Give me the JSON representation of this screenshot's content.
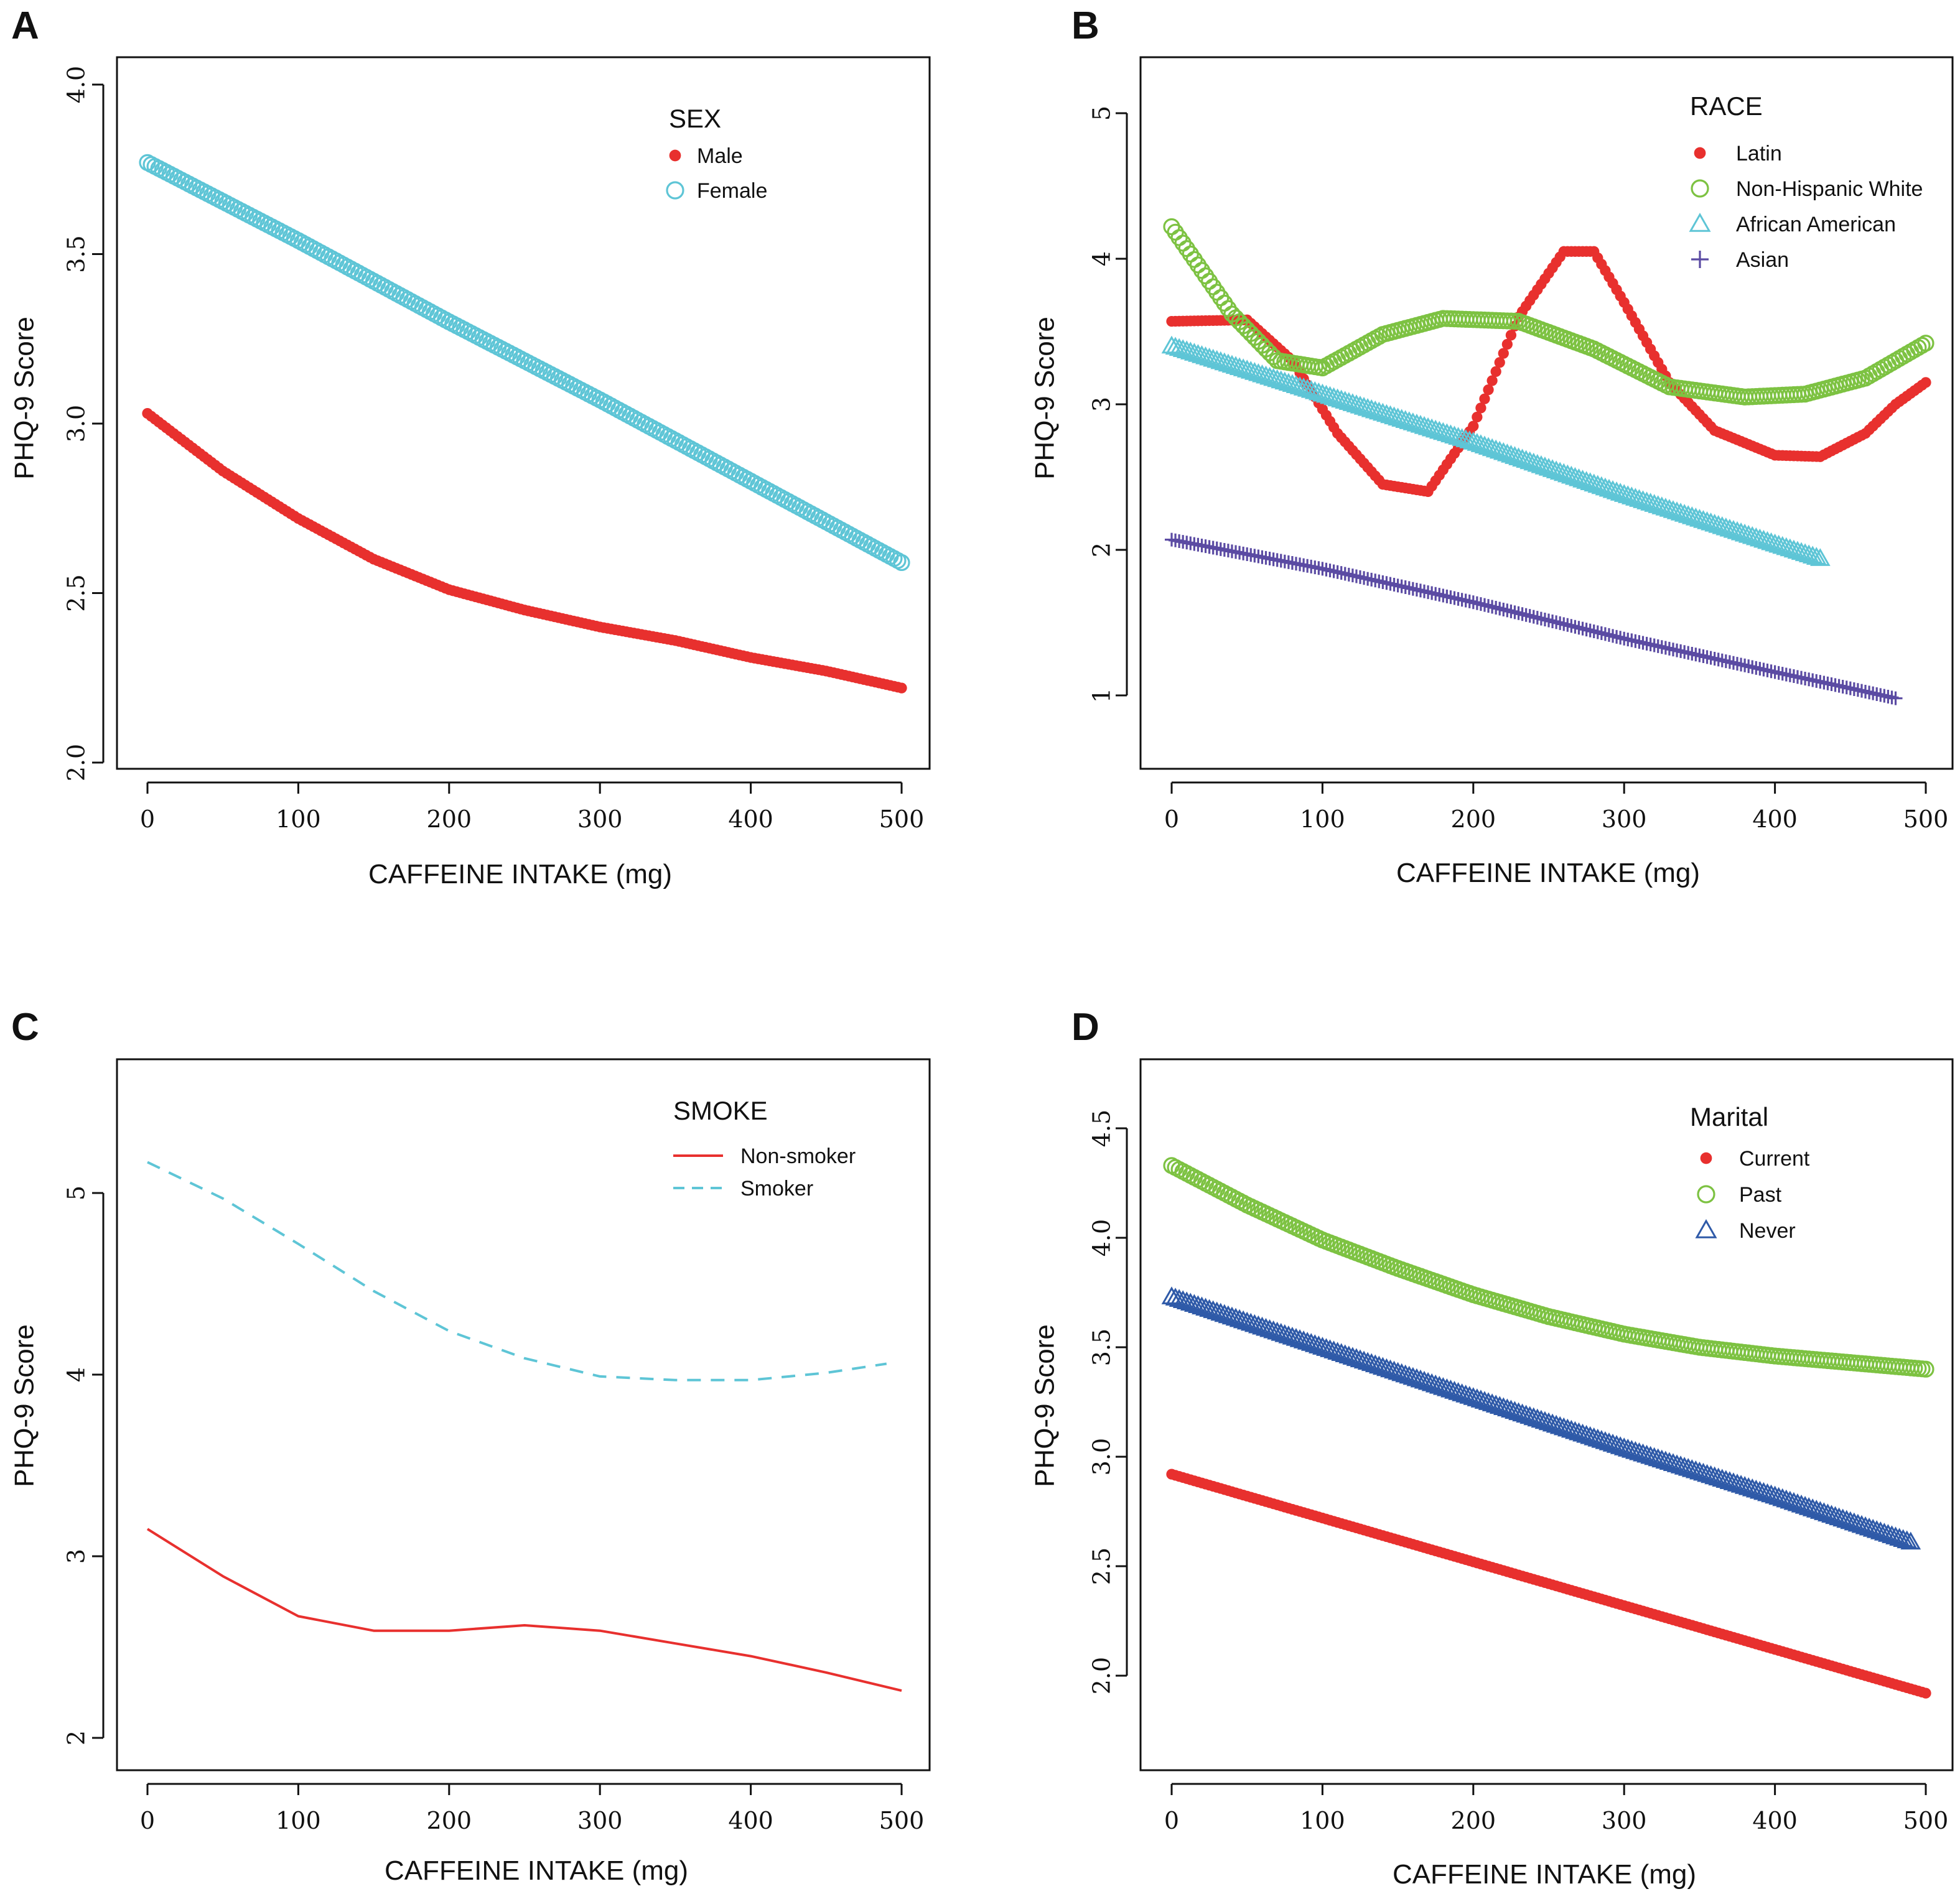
{
  "chart_data": [
    {
      "panel": "A",
      "type": "scatter",
      "xlabel": "CAFFEINE  INTAKE (mg)",
      "ylabel": "PHQ-9  Score",
      "xlim": [
        0,
        500
      ],
      "ylim": [
        2.0,
        4.0
      ],
      "x_ticks": [
        "0",
        "100",
        "200",
        "300",
        "400",
        "500"
      ],
      "y_ticks": [
        "2.0",
        "2.5",
        "3.0",
        "3.5",
        "4.0"
      ],
      "legend_title": "SEX",
      "legend_position": "top-right",
      "series": [
        {
          "name": "Male",
          "color": "#e8302e",
          "marker": "filled-circle",
          "points": [
            [
              0,
              3.03
            ],
            [
              50,
              2.86
            ],
            [
              100,
              2.72
            ],
            [
              150,
              2.6
            ],
            [
              200,
              2.51
            ],
            [
              250,
              2.45
            ],
            [
              300,
              2.4
            ],
            [
              350,
              2.36
            ],
            [
              400,
              2.31
            ],
            [
              450,
              2.27
            ],
            [
              500,
              2.22
            ]
          ]
        },
        {
          "name": "Female",
          "color": "#5ec5d6",
          "marker": "open-circle",
          "points": [
            [
              0,
              3.77
            ],
            [
              100,
              3.54
            ],
            [
              200,
              3.3
            ],
            [
              300,
              3.07
            ],
            [
              400,
              2.83
            ],
            [
              500,
              2.59
            ]
          ]
        }
      ]
    },
    {
      "panel": "B",
      "type": "scatter",
      "xlabel": "CAFFEINE  INTAKE (mg)",
      "ylabel": "PHQ-9  Score",
      "xlim": [
        0,
        500
      ],
      "ylim": [
        1,
        5
      ],
      "x_ticks": [
        "0",
        "100",
        "200",
        "300",
        "400",
        "500"
      ],
      "y_ticks": [
        "1",
        "2",
        "3",
        "4",
        "5"
      ],
      "legend_title": "RACE",
      "legend_position": "top-right",
      "series": [
        {
          "name": "Latin",
          "color": "#e8302e",
          "marker": "filled-circle",
          "points": [
            [
              0,
              3.57
            ],
            [
              50,
              3.58
            ],
            [
              80,
              3.3
            ],
            [
              110,
              2.8
            ],
            [
              140,
              2.45
            ],
            [
              170,
              2.4
            ],
            [
              200,
              2.85
            ],
            [
              230,
              3.6
            ],
            [
              260,
              4.05
            ],
            [
              280,
              4.05
            ],
            [
              300,
              3.7
            ],
            [
              330,
              3.15
            ],
            [
              360,
              2.82
            ],
            [
              400,
              2.65
            ],
            [
              430,
              2.64
            ],
            [
              460,
              2.8
            ],
            [
              480,
              3.0
            ],
            [
              500,
              3.15
            ]
          ]
        },
        {
          "name": "Non-Hispanic White",
          "color": "#7dc242",
          "marker": "open-circle",
          "points": [
            [
              0,
              4.22
            ],
            [
              40,
              3.62
            ],
            [
              70,
              3.3
            ],
            [
              100,
              3.25
            ],
            [
              140,
              3.48
            ],
            [
              180,
              3.59
            ],
            [
              230,
              3.57
            ],
            [
              280,
              3.38
            ],
            [
              330,
              3.12
            ],
            [
              380,
              3.05
            ],
            [
              420,
              3.07
            ],
            [
              460,
              3.18
            ],
            [
              500,
              3.42
            ]
          ]
        },
        {
          "name": "African American",
          "color": "#5ec5d6",
          "marker": "open-triangle",
          "points": [
            [
              0,
              3.4
            ],
            [
              100,
              3.07
            ],
            [
              200,
              2.74
            ],
            [
              300,
              2.38
            ],
            [
              400,
              2.04
            ],
            [
              430,
              1.94
            ]
          ]
        },
        {
          "name": "Asian",
          "color": "#5b4ba3",
          "marker": "plus",
          "points": [
            [
              0,
              2.07
            ],
            [
              100,
              1.87
            ],
            [
              200,
              1.64
            ],
            [
              300,
              1.39
            ],
            [
              400,
              1.16
            ],
            [
              445,
              1.06
            ],
            [
              480,
              0.98
            ]
          ]
        }
      ]
    },
    {
      "panel": "C",
      "type": "line",
      "xlabel": "CAFFEINE  INTAKE (mg)",
      "ylabel": "PHQ-9  Score",
      "xlim": [
        0,
        500
      ],
      "ylim": [
        2,
        5
      ],
      "x_ticks": [
        "0",
        "100",
        "200",
        "300",
        "400",
        "500"
      ],
      "y_ticks": [
        "2",
        "3",
        "4",
        "5"
      ],
      "legend_title": "SMOKE",
      "legend_position": "top-right",
      "series": [
        {
          "name": "Non-smoker",
          "color": "#e8302e",
          "style": "solid",
          "points": [
            [
              0,
              3.15
            ],
            [
              50,
              2.89
            ],
            [
              100,
              2.67
            ],
            [
              150,
              2.59
            ],
            [
              200,
              2.59
            ],
            [
              250,
              2.62
            ],
            [
              300,
              2.59
            ],
            [
              350,
              2.52
            ],
            [
              400,
              2.45
            ],
            [
              450,
              2.36
            ],
            [
              500,
              2.26
            ]
          ]
        },
        {
          "name": "Smoker",
          "color": "#5ec5d6",
          "style": "dashed",
          "points": [
            [
              0,
              5.17
            ],
            [
              50,
              4.97
            ],
            [
              100,
              4.72
            ],
            [
              150,
              4.46
            ],
            [
              200,
              4.24
            ],
            [
              250,
              4.09
            ],
            [
              300,
              3.99
            ],
            [
              350,
              3.97
            ],
            [
              400,
              3.97
            ],
            [
              450,
              4.01
            ],
            [
              490,
              4.06
            ]
          ]
        }
      ]
    },
    {
      "panel": "D",
      "type": "scatter",
      "xlabel": "CAFFEINE  INTAKE (mg)",
      "ylabel": "PHQ-9  Score",
      "xlim": [
        0,
        500
      ],
      "ylim": [
        2.0,
        4.5
      ],
      "x_ticks": [
        "0",
        "100",
        "200",
        "300",
        "400",
        "500"
      ],
      "y_ticks": [
        "2.0",
        "2.5",
        "3.0",
        "3.5",
        "4.0",
        "4.5"
      ],
      "legend_title": "Marital",
      "legend_position": "top-right",
      "series": [
        {
          "name": "Current",
          "color": "#e8302e",
          "marker": "filled-circle",
          "points": [
            [
              0,
              2.92
            ],
            [
              100,
              2.72
            ],
            [
              200,
              2.52
            ],
            [
              300,
              2.32
            ],
            [
              400,
              2.12
            ],
            [
              500,
              1.92
            ]
          ]
        },
        {
          "name": "Past",
          "color": "#7dc242",
          "marker": "open-circle",
          "points": [
            [
              0,
              4.33
            ],
            [
              50,
              4.15
            ],
            [
              100,
              3.99
            ],
            [
              150,
              3.86
            ],
            [
              200,
              3.74
            ],
            [
              250,
              3.64
            ],
            [
              300,
              3.56
            ],
            [
              350,
              3.5
            ],
            [
              400,
              3.46
            ],
            [
              450,
              3.43
            ],
            [
              500,
              3.4
            ]
          ]
        },
        {
          "name": "Never",
          "color": "#2f5aa8",
          "marker": "open-triangle",
          "points": [
            [
              0,
              3.73
            ],
            [
              100,
              3.5
            ],
            [
              200,
              3.27
            ],
            [
              300,
              3.04
            ],
            [
              400,
              2.82
            ],
            [
              490,
              2.61
            ]
          ]
        }
      ]
    }
  ]
}
